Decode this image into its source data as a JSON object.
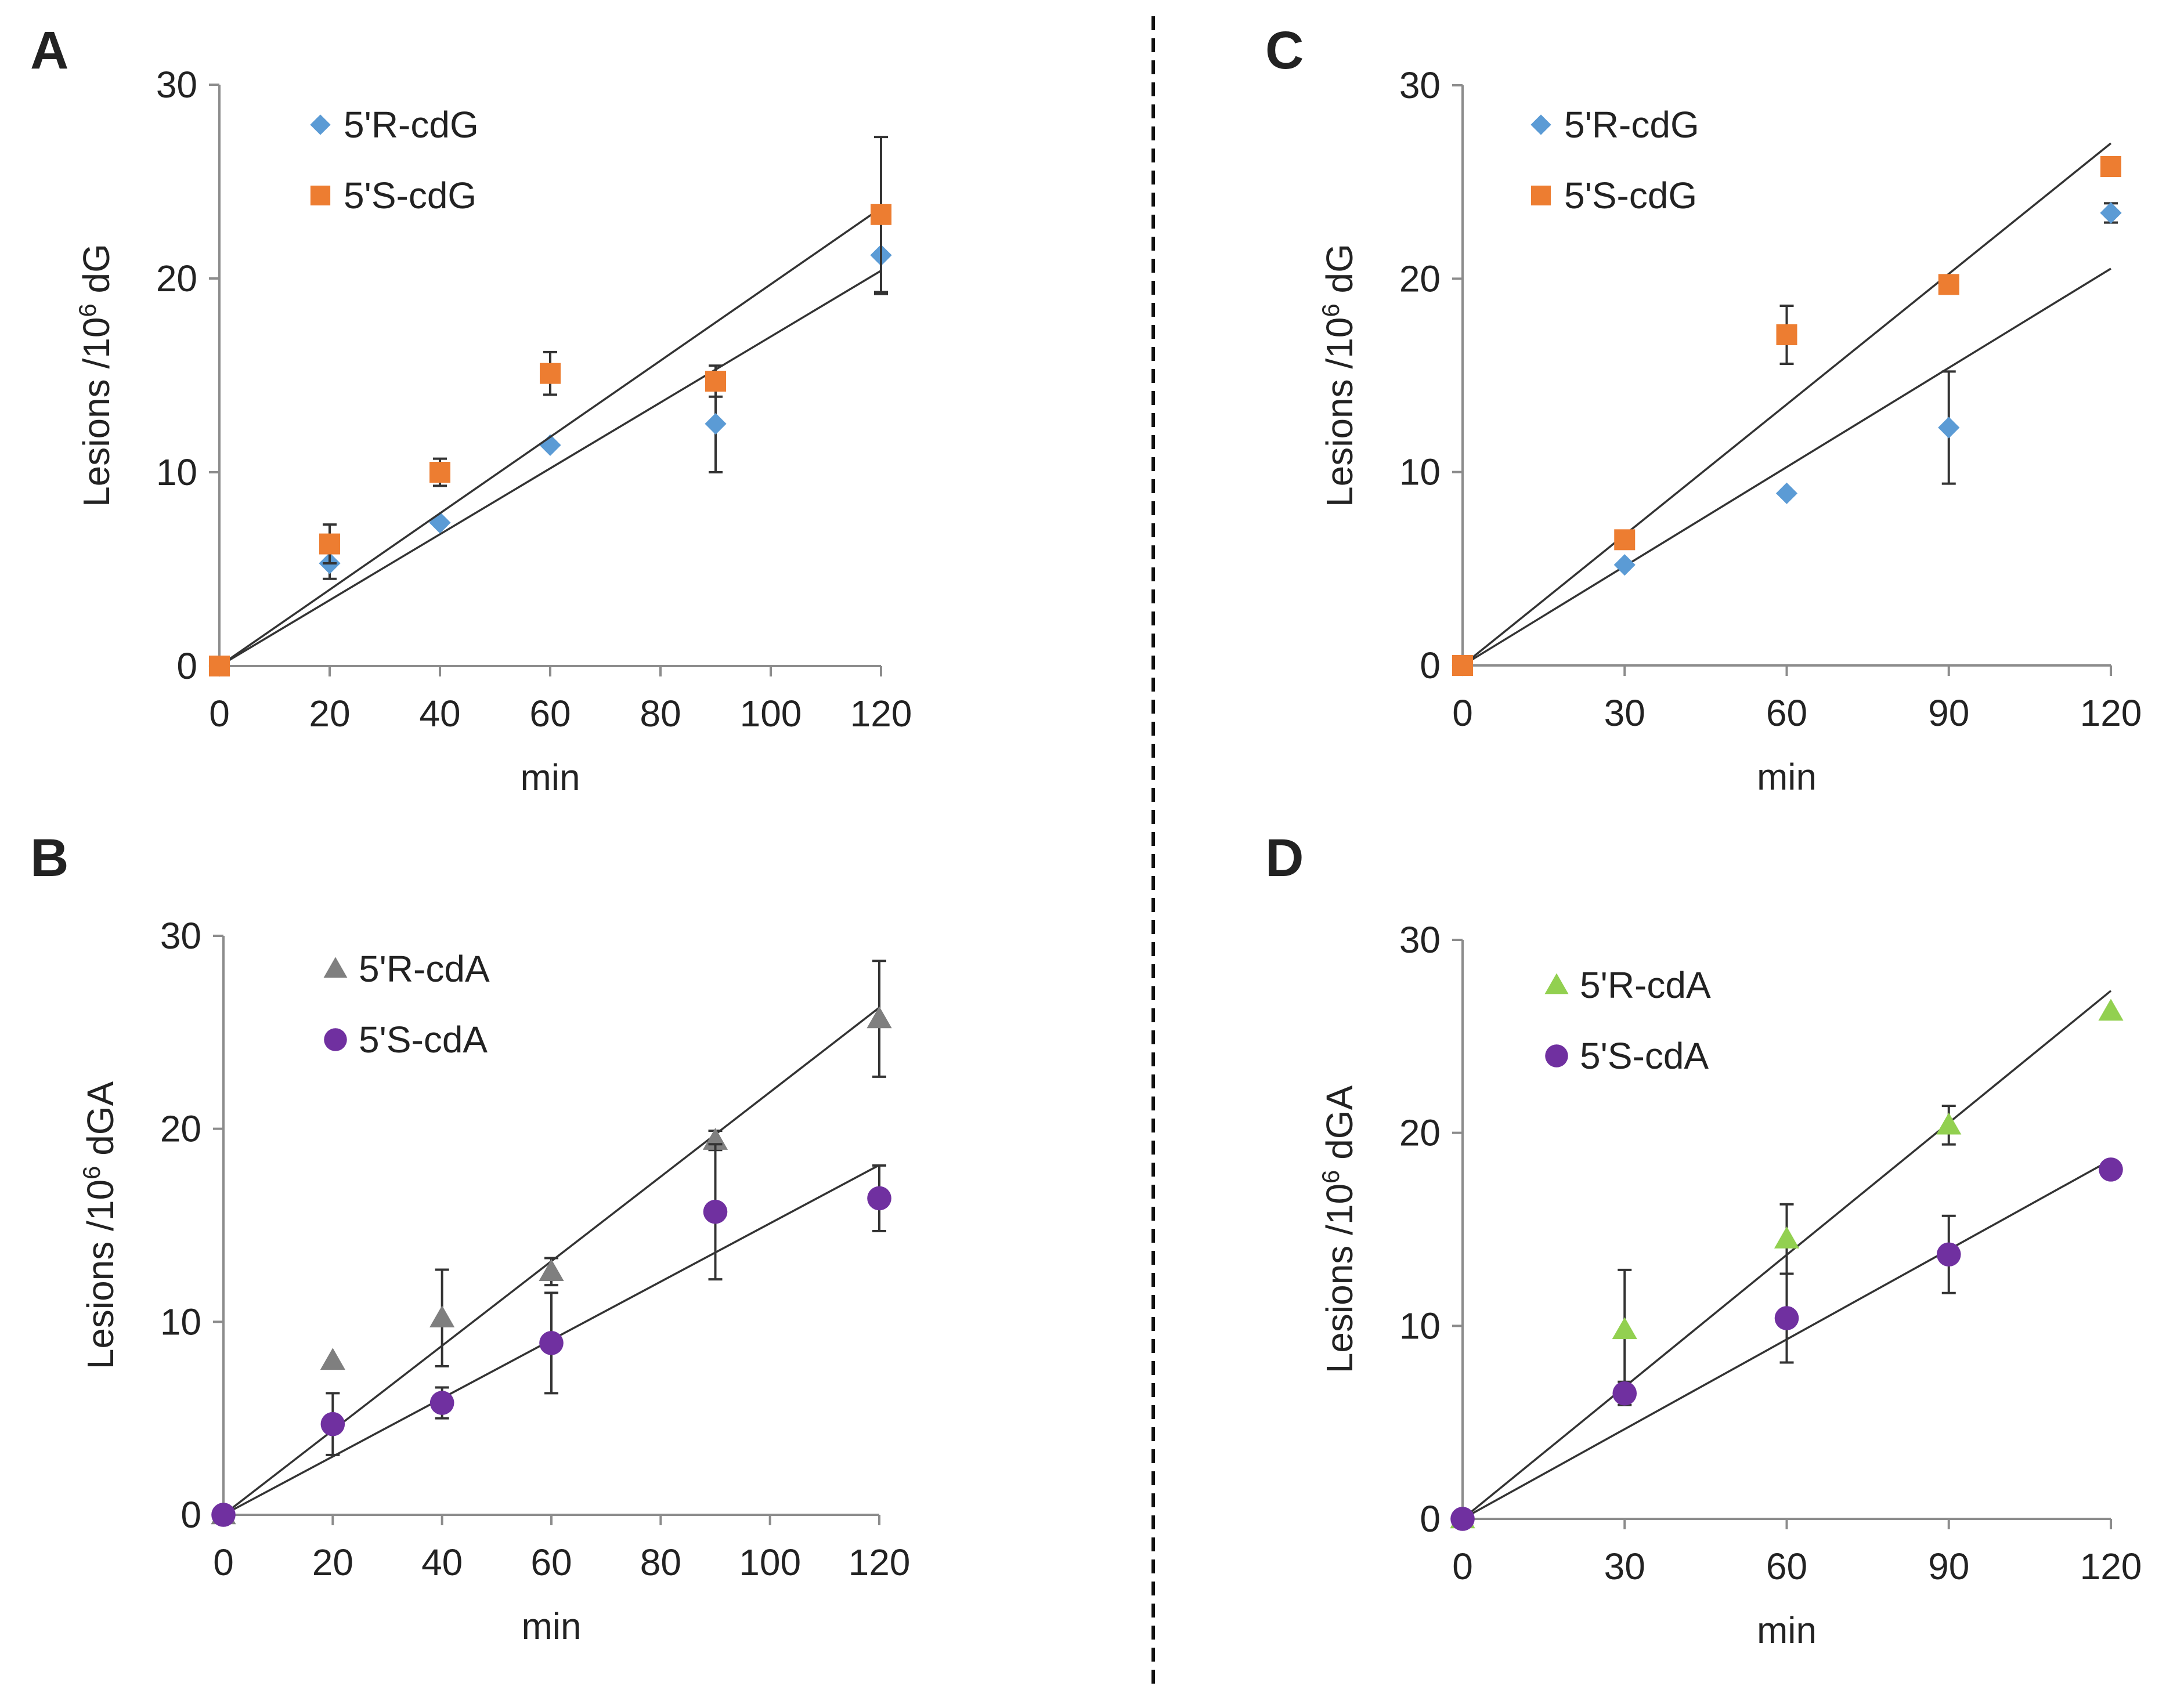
{
  "chart_data": [
    {
      "panel": "A",
      "type": "scatter",
      "xlabel": "min",
      "ylabel": "Lesions /10",
      "ylabel_exp": "6",
      "ylabel_unit": " dG",
      "xlim": [
        0,
        120
      ],
      "ylim": [
        0,
        30
      ],
      "xticks": [
        0,
        20,
        40,
        60,
        80,
        100,
        120
      ],
      "yticks": [
        0,
        10,
        20,
        30
      ],
      "legend": "top-left",
      "series": [
        {
          "name": "5'R-cdG",
          "marker": "diamond",
          "color": "#5b9bd5",
          "x": [
            0,
            20,
            40,
            60,
            90,
            120
          ],
          "y": [
            0,
            5.3,
            7.4,
            11.4,
            12.5,
            21.2
          ],
          "err": [
            0,
            0.8,
            0,
            0,
            2.5,
            2.0
          ],
          "fit_slope": 0.17
        },
        {
          "name": "5'S-cdG",
          "marker": "square",
          "color": "#ed7d31",
          "x": [
            0,
            20,
            40,
            60,
            90,
            120
          ],
          "y": [
            0,
            6.3,
            10.0,
            15.1,
            14.7,
            23.3
          ],
          "err": [
            0,
            1.0,
            0.7,
            1.1,
            0.8,
            4.0
          ],
          "fit_slope": 0.197
        }
      ]
    },
    {
      "panel": "B",
      "type": "scatter",
      "xlabel": "min",
      "ylabel": "Lesions /10",
      "ylabel_exp": "6",
      "ylabel_unit": " dGA",
      "xlim": [
        0,
        120
      ],
      "ylim": [
        0,
        30
      ],
      "xticks": [
        0,
        20,
        40,
        60,
        80,
        100,
        120
      ],
      "yticks": [
        0,
        10,
        20,
        30
      ],
      "legend": "top-left",
      "series": [
        {
          "name": "5'R-cdA",
          "marker": "triangle",
          "color": "#7f7f7f",
          "x": [
            0,
            20,
            40,
            60,
            90,
            120
          ],
          "y": [
            0,
            8.0,
            10.2,
            12.6,
            19.4,
            25.7
          ],
          "err": [
            0,
            0,
            2.5,
            0.7,
            0.5,
            3.0
          ],
          "fit_slope": 0.219
        },
        {
          "name": "5'S-cdA",
          "marker": "circle",
          "color": "#7030a0",
          "x": [
            0,
            20,
            40,
            60,
            90,
            120
          ],
          "y": [
            0,
            4.7,
            5.8,
            8.9,
            15.7,
            16.4
          ],
          "err": [
            0,
            1.6,
            0.8,
            2.6,
            3.5,
            1.7
          ],
          "fit_slope": 0.151
        }
      ]
    },
    {
      "panel": "C",
      "type": "scatter",
      "xlabel": "min",
      "ylabel": "Lesions /10",
      "ylabel_exp": "6",
      "ylabel_unit": " dG",
      "xlim": [
        0,
        120
      ],
      "ylim": [
        0,
        30
      ],
      "xticks": [
        0,
        30,
        60,
        90,
        120
      ],
      "yticks": [
        0,
        10,
        20,
        30
      ],
      "legend": "top-left",
      "series": [
        {
          "name": "5'R-cdG",
          "marker": "diamond",
          "color": "#5b9bd5",
          "x": [
            0,
            30,
            60,
            90,
            120
          ],
          "y": [
            0,
            5.2,
            8.9,
            12.3,
            23.4
          ],
          "err": [
            0,
            0,
            0,
            2.9,
            0.5
          ],
          "fit_slope": 0.171
        },
        {
          "name": "5'S-cdG",
          "marker": "square",
          "color": "#ed7d31",
          "x": [
            0,
            30,
            60,
            90,
            120
          ],
          "y": [
            0,
            6.5,
            17.1,
            19.7,
            25.8
          ],
          "err": [
            0,
            0,
            1.5,
            0,
            0
          ],
          "fit_slope": 0.225
        }
      ]
    },
    {
      "panel": "D",
      "type": "scatter",
      "xlabel": "min",
      "ylabel": "Lesions /10",
      "ylabel_exp": "6",
      "ylabel_unit": " dGA",
      "xlim": [
        0,
        120
      ],
      "ylim": [
        0,
        30
      ],
      "xticks": [
        0,
        30,
        60,
        90,
        120
      ],
      "yticks": [
        0,
        10,
        20,
        30
      ],
      "legend": "top-left",
      "series": [
        {
          "name": "5'R-cdA",
          "marker": "triangle",
          "color": "#92d050",
          "x": [
            0,
            30,
            60,
            90,
            120
          ],
          "y": [
            0,
            9.8,
            14.5,
            20.4,
            26.3
          ],
          "err": [
            0,
            3.1,
            1.8,
            1.0,
            0
          ],
          "fit_slope": 0.228
        },
        {
          "name": "5'S-cdA",
          "marker": "circle",
          "color": "#7030a0",
          "x": [
            0,
            30,
            60,
            90,
            120
          ],
          "y": [
            0,
            6.5,
            10.4,
            13.7,
            18.1
          ],
          "err": [
            0,
            0.6,
            2.3,
            2.0,
            0
          ],
          "fit_slope": 0.155
        }
      ]
    }
  ]
}
